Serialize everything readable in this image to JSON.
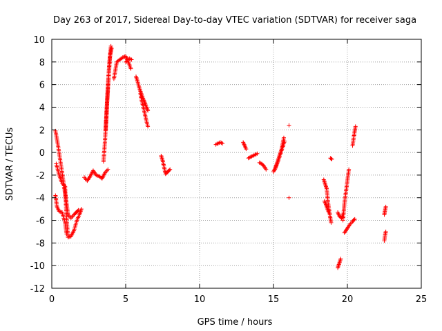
{
  "chart_data": {
    "type": "scatter",
    "title": "Day 263 of 2017, Sidereal Day-to-day VTEC variation (SDTVAR) for receiver saga",
    "xlabel": "GPS time / hours",
    "ylabel": "SDTVAR / TECUs",
    "xlim": [
      0,
      25
    ],
    "ylim": [
      -12,
      10
    ],
    "xticks": [
      0,
      5,
      10,
      15,
      20,
      25
    ],
    "yticks": [
      -12,
      -10,
      -8,
      -6,
      -4,
      -2,
      0,
      2,
      4,
      6,
      8,
      10
    ],
    "grid": true,
    "marker": "+",
    "color": "#ff0000",
    "series": [
      {
        "name": "SDTVAR",
        "segments": [
          {
            "x": [
              0.25,
              0.4,
              0.55,
              0.7,
              0.85,
              1.0,
              1.1,
              1.3,
              1.5,
              1.65,
              1.8
            ],
            "y": [
              1.9,
              0.8,
              -0.5,
              -1.8,
              -3.2,
              -4.5,
              -5.5,
              -5.8,
              -5.5,
              -5.3,
              -5.1
            ]
          },
          {
            "x": [
              0.3,
              0.5,
              0.7,
              0.9,
              1.0,
              1.1,
              1.3,
              1.5,
              1.7,
              1.9,
              2.0
            ],
            "y": [
              -1.0,
              -2.0,
              -2.7,
              -3.0,
              -5.8,
              -7.5,
              -7.4,
              -6.9,
              -6.0,
              -5.4,
              -5.0
            ]
          },
          {
            "x": [
              0.25,
              0.35,
              0.5,
              0.7,
              0.9,
              1.0
            ],
            "y": [
              -3.8,
              -4.8,
              -5.2,
              -5.3,
              -6.2,
              -7.2
            ]
          },
          {
            "x": [
              2.2,
              2.4,
              2.6,
              2.8,
              3.0,
              3.2,
              3.4,
              3.6,
              3.8
            ],
            "y": [
              -2.2,
              -2.5,
              -2.1,
              -1.6,
              -2.0,
              -2.1,
              -2.3,
              -1.8,
              -1.5
            ]
          },
          {
            "x": [
              3.5,
              3.6,
              3.7,
              3.8,
              3.9,
              4.0
            ],
            "y": [
              -0.8,
              1.0,
              3.5,
              6.0,
              8.0,
              9.4
            ]
          },
          {
            "x": [
              3.65,
              3.75,
              3.85,
              3.95,
              4.05
            ],
            "y": [
              2.0,
              4.5,
              6.8,
              8.6,
              9.2
            ]
          },
          {
            "x": [
              4.2,
              4.4,
              4.6,
              4.8,
              5.0,
              5.1,
              5.25,
              5.4
            ],
            "y": [
              6.5,
              8.0,
              8.2,
              8.4,
              8.5,
              8.2,
              8.3,
              8.2
            ]
          },
          {
            "x": [
              5.0,
              5.15,
              5.35
            ],
            "y": [
              8.0,
              8.1,
              7.4
            ]
          },
          {
            "x": [
              5.7,
              5.8,
              5.9,
              6.0,
              6.1,
              6.2,
              6.35,
              6.5
            ],
            "y": [
              6.7,
              6.3,
              5.8,
              5.4,
              5.0,
              4.7,
              4.2,
              3.7
            ]
          },
          {
            "x": [
              6.0,
              6.1,
              6.2,
              6.3,
              6.4,
              6.5
            ],
            "y": [
              5.2,
              4.5,
              4.0,
              3.4,
              2.8,
              2.3
            ]
          },
          {
            "x": [
              7.4,
              7.5,
              7.7,
              7.85,
              8.0
            ],
            "y": [
              -0.3,
              -0.7,
              -1.9,
              -1.7,
              -1.5
            ]
          },
          {
            "x": [
              11.1,
              11.25,
              11.4,
              11.55
            ],
            "y": [
              0.7,
              0.8,
              0.9,
              0.8
            ]
          },
          {
            "x": [
              12.95,
              13.05,
              13.15
            ],
            "y": [
              0.9,
              0.6,
              0.3
            ]
          },
          {
            "x": [
              13.3,
              13.45,
              13.6,
              13.75,
              13.9
            ],
            "y": [
              -0.5,
              -0.4,
              -0.3,
              -0.2,
              -0.1
            ]
          },
          {
            "x": [
              14.05,
              14.2,
              14.35,
              14.5
            ],
            "y": [
              -0.9,
              -1.0,
              -1.2,
              -1.5
            ]
          },
          {
            "x": [
              15.0,
              15.15,
              15.3,
              15.45,
              15.6,
              15.75
            ],
            "y": [
              -1.7,
              -1.3,
              -0.8,
              -0.2,
              0.4,
              1.0
            ]
          },
          {
            "x": [
              15.1,
              15.25,
              15.4,
              15.55,
              15.7
            ],
            "y": [
              -1.5,
              -0.9,
              -0.3,
              0.3,
              1.3
            ]
          },
          {
            "x": [
              16.05
            ],
            "y": [
              2.4
            ]
          },
          {
            "x": [
              16.05
            ],
            "y": [
              -4.0
            ]
          },
          {
            "x": [
              18.4,
              18.5,
              18.6,
              18.7,
              18.8,
              18.9
            ],
            "y": [
              -2.4,
              -2.8,
              -3.2,
              -4.5,
              -5.4,
              -6.2
            ]
          },
          {
            "x": [
              18.45,
              18.55,
              18.65,
              18.75
            ],
            "y": [
              -4.3,
              -4.6,
              -5.0,
              -5.3
            ]
          },
          {
            "x": [
              18.85,
              18.95
            ],
            "y": [
              -0.5,
              -0.6
            ]
          },
          {
            "x": [
              19.35,
              19.45,
              19.55
            ],
            "y": [
              -10.2,
              -9.8,
              -9.4
            ]
          },
          {
            "x": [
              19.35,
              19.45,
              19.6,
              19.7
            ],
            "y": [
              -5.3,
              -5.6,
              -5.8,
              -5.5
            ]
          },
          {
            "x": [
              19.8,
              19.9,
              20.0,
              20.1,
              20.2
            ],
            "y": [
              -7.1,
              -6.9,
              -6.7,
              -6.5,
              -6.3
            ]
          },
          {
            "x": [
              19.7,
              19.8,
              19.9,
              20.0,
              20.1
            ],
            "y": [
              -6.0,
              -4.5,
              -3.5,
              -2.5,
              -1.5
            ]
          },
          {
            "x": [
              20.3,
              20.4,
              20.5
            ],
            "y": [
              -6.2,
              -6.0,
              -5.9
            ]
          },
          {
            "x": [
              20.35,
              20.45,
              20.55
            ],
            "y": [
              0.6,
              1.5,
              2.3
            ]
          },
          {
            "x": [
              22.5,
              22.55,
              22.6
            ],
            "y": [
              -7.8,
              -7.3,
              -7.0
            ]
          },
          {
            "x": [
              22.5,
              22.55,
              22.6
            ],
            "y": [
              -5.5,
              -5.1,
              -4.8
            ]
          }
        ]
      }
    ]
  }
}
